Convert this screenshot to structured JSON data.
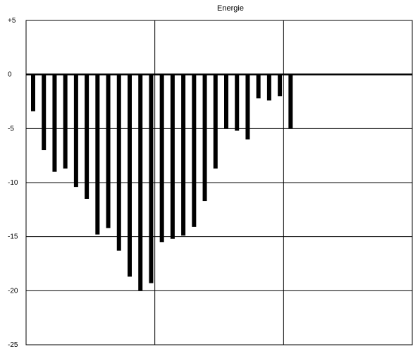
{
  "chart_data": {
    "type": "bar",
    "title": "Energie",
    "xlabel": "",
    "ylabel": "",
    "ylim": [
      -25,
      5
    ],
    "y_ticks": [
      {
        "value": 5,
        "label": "+5"
      },
      {
        "value": 0,
        "label": "0"
      },
      {
        "value": -5,
        "label": "-5"
      },
      {
        "value": -10,
        "label": "-10"
      },
      {
        "value": -15,
        "label": "-15"
      },
      {
        "value": -20,
        "label": "-20"
      },
      {
        "value": -25,
        "label": "-25"
      }
    ],
    "grid": true,
    "bar_color": "#000000",
    "slot_count": 36,
    "values": [
      -3.4,
      -7.0,
      -9.0,
      -8.7,
      -10.4,
      -11.5,
      -14.8,
      -14.2,
      -16.3,
      -18.7,
      -20.0,
      -19.3,
      -15.5,
      -15.2,
      -14.9,
      -14.1,
      -11.7,
      -8.7,
      -5.0,
      -5.2,
      -6.0,
      -2.2,
      -2.4,
      -2.0,
      -5.0
    ]
  }
}
